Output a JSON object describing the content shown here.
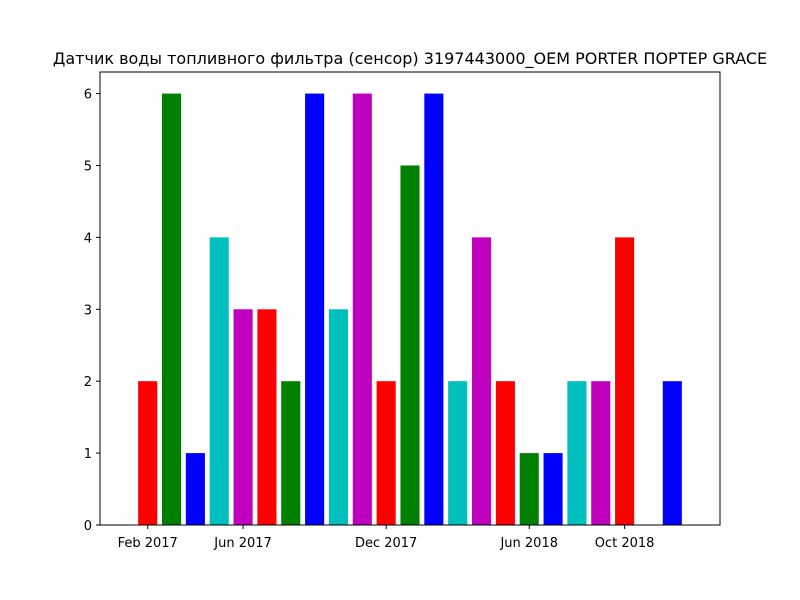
{
  "chart_data": {
    "type": "bar",
    "title": "Датчик воды топливного фильтра (сенсор) 3197443000_OEM  PORTER ПОРТЕР GRACE",
    "xlabel": "",
    "ylabel": "",
    "x": [
      "2017-02",
      "2017-03",
      "2017-04",
      "2017-05",
      "2017-06",
      "2017-07",
      "2017-08",
      "2017-09",
      "2017-10",
      "2017-11",
      "2017-12",
      "2018-01",
      "2018-02",
      "2018-03",
      "2018-04",
      "2018-05",
      "2018-06",
      "2018-07",
      "2018-08",
      "2018-09",
      "2018-10",
      "2018-11",
      "2018-12"
    ],
    "values": [
      2,
      6,
      1,
      4,
      3,
      3,
      2,
      6,
      3,
      6,
      2,
      5,
      6,
      2,
      4,
      2,
      1,
      1,
      2,
      2,
      4,
      0,
      2
    ],
    "bar_colors": [
      "#ff0000",
      "#008000",
      "#0000ff",
      "#00bfbf",
      "#bf00bf"
    ],
    "x_ticks": [
      {
        "x": "2017-02",
        "label": "Feb 2017"
      },
      {
        "x": "2017-06",
        "label": "Jun 2017"
      },
      {
        "x": "2017-12",
        "label": "Dec 2017"
      },
      {
        "x": "2018-06",
        "label": "Jun 2018"
      },
      {
        "x": "2018-10",
        "label": "Oct 2018"
      }
    ],
    "y_ticks": [
      "0",
      "1",
      "2",
      "3",
      "4",
      "5",
      "6"
    ],
    "ylim": [
      0,
      6.3
    ],
    "xlim": [
      "2016-12",
      "2019-02"
    ],
    "grid": false,
    "legend": "none"
  }
}
